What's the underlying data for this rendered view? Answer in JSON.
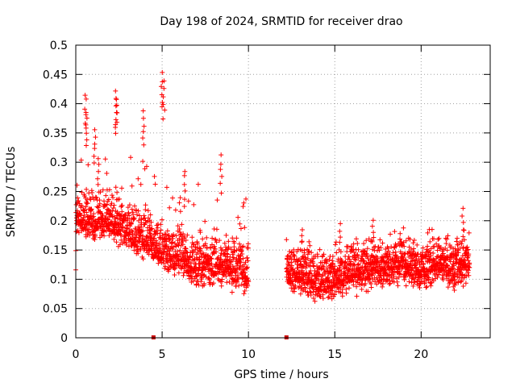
{
  "chart_data": {
    "type": "scatter",
    "title": "Day 198 of 2024, SRMTID for receiver drao",
    "xlabel": "GPS time / hours",
    "ylabel": "SRMTID / TECUs",
    "xlim": [
      0,
      24
    ],
    "ylim": [
      0,
      0.5
    ],
    "xticks": [
      0,
      5,
      10,
      15,
      20
    ],
    "xtick_labels": [
      "0",
      "5",
      "10",
      "15",
      "20"
    ],
    "yticks": [
      0,
      0.05,
      0.1,
      0.15,
      0.2,
      0.25,
      0.3,
      0.35,
      0.4,
      0.45,
      0.5
    ],
    "ytick_labels": [
      "0",
      "0.05",
      "0.1",
      "0.15",
      "0.2",
      "0.25",
      "0.3",
      "0.35",
      "0.4",
      "0.45",
      "0.5"
    ],
    "grid": true,
    "marker": "+",
    "marker_color": "#ff0000",
    "zero_marker_color": "#cc0000",
    "gap_markers_x": [
      4.5,
      12.2
    ],
    "series": [
      {
        "name": "SRMTID",
        "segments": [
          {
            "x_start": 0.0,
            "x_end": 10.0,
            "count": 1300,
            "seed": 1
          },
          {
            "x_start": 12.2,
            "x_end": 22.8,
            "count": 1450,
            "seed": 7
          }
        ],
        "level_profile": [
          {
            "x": 0.0,
            "y": 0.2
          },
          {
            "x": 1.0,
            "y": 0.2
          },
          {
            "x": 2.0,
            "y": 0.2
          },
          {
            "x": 3.0,
            "y": 0.18
          },
          {
            "x": 4.0,
            "y": 0.17
          },
          {
            "x": 5.0,
            "y": 0.15
          },
          {
            "x": 6.0,
            "y": 0.14
          },
          {
            "x": 7.0,
            "y": 0.12
          },
          {
            "x": 8.0,
            "y": 0.125
          },
          {
            "x": 9.0,
            "y": 0.12
          },
          {
            "x": 10.0,
            "y": 0.11
          },
          {
            "x": 12.2,
            "y": 0.11
          },
          {
            "x": 13.0,
            "y": 0.11
          },
          {
            "x": 14.0,
            "y": 0.095
          },
          {
            "x": 15.0,
            "y": 0.1
          },
          {
            "x": 16.0,
            "y": 0.11
          },
          {
            "x": 17.0,
            "y": 0.12
          },
          {
            "x": 18.0,
            "y": 0.12
          },
          {
            "x": 19.0,
            "y": 0.13
          },
          {
            "x": 20.0,
            "y": 0.115
          },
          {
            "x": 21.0,
            "y": 0.13
          },
          {
            "x": 22.0,
            "y": 0.12
          },
          {
            "x": 22.8,
            "y": 0.13
          }
        ],
        "spread": 0.045,
        "peaks": [
          {
            "x": 0.55,
            "y": 0.42
          },
          {
            "x": 0.6,
            "y": 0.39
          },
          {
            "x": 1.1,
            "y": 0.36
          },
          {
            "x": 1.3,
            "y": 0.31
          },
          {
            "x": 2.3,
            "y": 0.425
          },
          {
            "x": 2.35,
            "y": 0.41
          },
          {
            "x": 3.9,
            "y": 0.39
          },
          {
            "x": 5.0,
            "y": 0.455
          },
          {
            "x": 5.1,
            "y": 0.44
          },
          {
            "x": 8.4,
            "y": 0.313
          },
          {
            "x": 6.3,
            "y": 0.29
          },
          {
            "x": 13.1,
            "y": 0.19
          },
          {
            "x": 15.3,
            "y": 0.2
          },
          {
            "x": 17.2,
            "y": 0.205
          },
          {
            "x": 22.4,
            "y": 0.225
          }
        ],
        "min_y": 0.03
      }
    ]
  }
}
